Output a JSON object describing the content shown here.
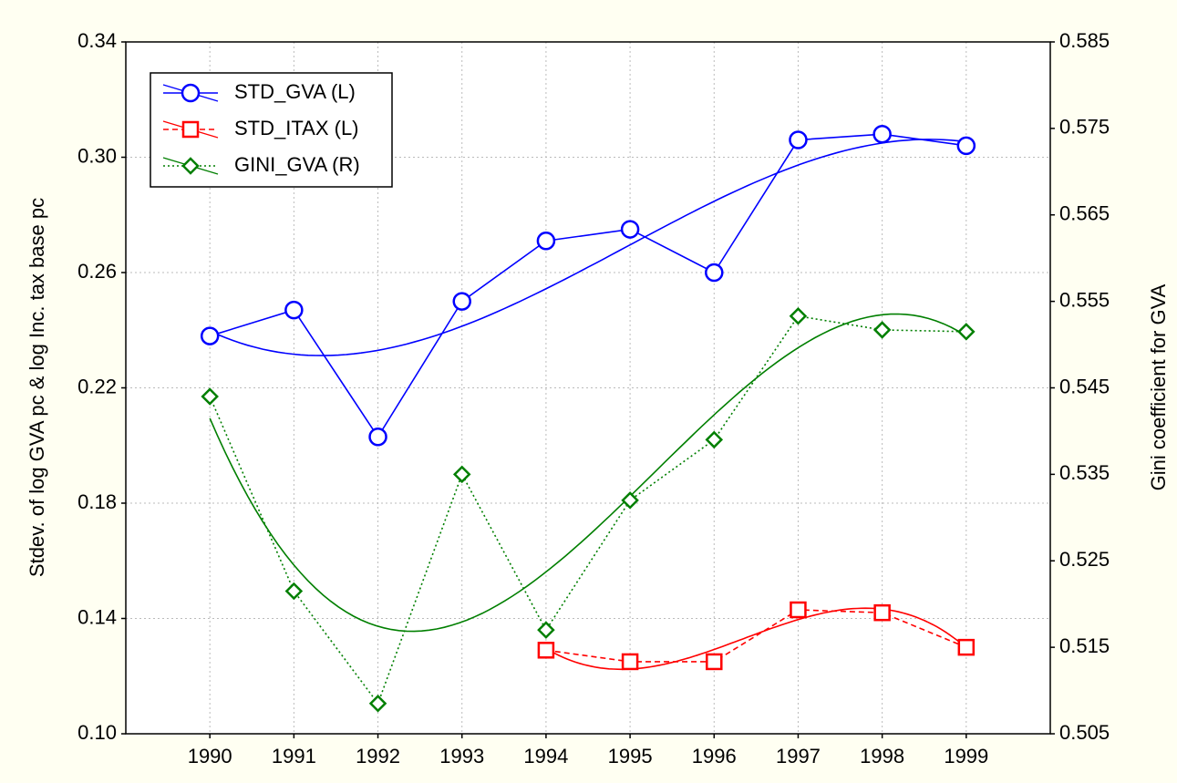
{
  "chart_data": {
    "type": "line",
    "x": [
      1990,
      1991,
      1992,
      1993,
      1994,
      1995,
      1996,
      1997,
      1998,
      1999
    ],
    "xlim": [
      1989,
      2000
    ],
    "xticks": [
      1990,
      1991,
      1992,
      1993,
      1994,
      1995,
      1996,
      1997,
      1998,
      1999
    ],
    "ylabel": "Stdev. of log GVA pc & log Inc. tax base pc",
    "y2label": "Gini coefficient for GVA",
    "ylim": [
      0.1,
      0.34
    ],
    "yticks": [
      {
        "value": 0.1,
        "label": "0.10"
      },
      0.14,
      0.18,
      0.22,
      0.26,
      {
        "value": 0.3,
        "label": "0.30"
      },
      0.34
    ],
    "y2lim": [
      0.505,
      0.585
    ],
    "y2ticks": [
      0.505,
      0.515,
      0.525,
      0.535,
      0.545,
      0.555,
      0.565,
      0.575,
      0.585
    ],
    "grid": true,
    "legend": "top-left",
    "fit_degree": 3,
    "series": [
      {
        "name": "STD_GVA (L)",
        "color": "#0000ff",
        "marker": "circle",
        "dash": "solid",
        "values": [
          0.238,
          0.247,
          0.203,
          0.25,
          0.271,
          0.275,
          0.26,
          0.306,
          0.308,
          0.304
        ]
      },
      {
        "name": "STD_ITAX (L)",
        "color": "#ff0000",
        "marker": "square",
        "dash": "dashed",
        "values": [
          null,
          null,
          null,
          null,
          0.129,
          0.125,
          0.125,
          0.143,
          0.142,
          0.13
        ]
      },
      {
        "name": "GINI_GVA (R)",
        "color": "#007f00",
        "marker": "diamond",
        "dash": "dotted",
        "axis": "y2",
        "values": [
          0.544,
          0.5215,
          0.5085,
          0.535,
          0.517,
          0.532,
          0.539,
          0.5533,
          0.5517,
          0.5515
        ]
      }
    ]
  }
}
